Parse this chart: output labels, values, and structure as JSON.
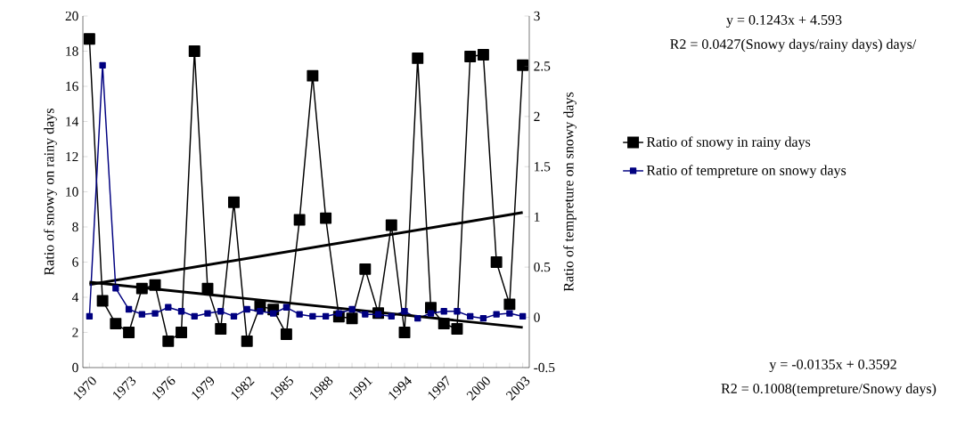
{
  "chart_data": {
    "type": "line",
    "categories": [
      "1970",
      null,
      null,
      "1973",
      null,
      null,
      "1976",
      null,
      null,
      "1979",
      null,
      null,
      "1982",
      null,
      null,
      "1985",
      null,
      null,
      "1988",
      null,
      null,
      "1991",
      null,
      null,
      "1994",
      null,
      null,
      "1997",
      null,
      null,
      "2000",
      null,
      null,
      "2003"
    ],
    "ylabel": "Ratio of snowy on rainy days",
    "y2label": "Ratio of tempreture on snowy days",
    "ylim": [
      0,
      20
    ],
    "yticks": [
      0,
      2,
      4,
      6,
      8,
      10,
      12,
      14,
      16,
      18,
      20
    ],
    "y2lim": [
      -0.5,
      3
    ],
    "y2ticks": [
      -0.5,
      0,
      0.5,
      1,
      1.5,
      2,
      2.5,
      3
    ],
    "legend": "right",
    "series": [
      {
        "name": "Ratio of snowy in rainy days",
        "color": "#000000",
        "marker": "square",
        "values": [
          18.7,
          3.8,
          2.5,
          2.0,
          4.5,
          4.7,
          1.5,
          2.0,
          18.0,
          4.5,
          2.2,
          9.4,
          1.5,
          3.5,
          3.3,
          1.9,
          8.4,
          16.6,
          8.5,
          2.9,
          2.8,
          5.6,
          3.1,
          8.1,
          2.0,
          17.6,
          3.4,
          2.5,
          2.2,
          17.7,
          17.8,
          6.0,
          3.6,
          17.2
        ]
      },
      {
        "name": "Ratio of tempreture on snowy days",
        "color": "#000080",
        "marker": "square",
        "axis": "y2",
        "values": [
          0.01,
          2.51,
          0.29,
          0.08,
          0.03,
          0.04,
          0.1,
          0.06,
          0.01,
          0.04,
          0.06,
          0.01,
          0.08,
          0.06,
          0.04,
          0.1,
          0.03,
          0.01,
          0.01,
          0.04,
          0.08,
          0.03,
          0.03,
          0.01,
          0.06,
          -0.01,
          0.04,
          0.06,
          0.06,
          0.01,
          -0.01,
          0.03,
          0.04,
          0.01
        ]
      },
      {
        "type": "line",
        "color": "#000000",
        "marker": "none",
        "values": [
          4.72,
          null,
          null,
          null,
          null,
          null,
          null,
          null,
          null,
          null,
          null,
          null,
          null,
          null,
          null,
          null,
          null,
          null,
          null,
          null,
          null,
          null,
          null,
          null,
          null,
          null,
          null,
          null,
          null,
          null,
          null,
          null,
          null,
          8.82
        ]
      },
      {
        "type": "line",
        "color": "#000000",
        "marker": "none",
        "axis": "y2",
        "values": [
          0.35,
          null,
          null,
          null,
          null,
          null,
          null,
          null,
          null,
          null,
          null,
          null,
          null,
          null,
          null,
          null,
          null,
          null,
          null,
          null,
          null,
          null,
          null,
          null,
          null,
          null,
          null,
          null,
          null,
          null,
          null,
          null,
          null,
          -0.1
        ]
      }
    ],
    "annotations": [
      "y = 0.1243x + 4.593",
      "R2 = 0.0427(Snowy days/rainy days) days/",
      "y = -0.0135x + 0.3592",
      "R2 = 0.1008(tempreture/Snowy days)"
    ]
  }
}
